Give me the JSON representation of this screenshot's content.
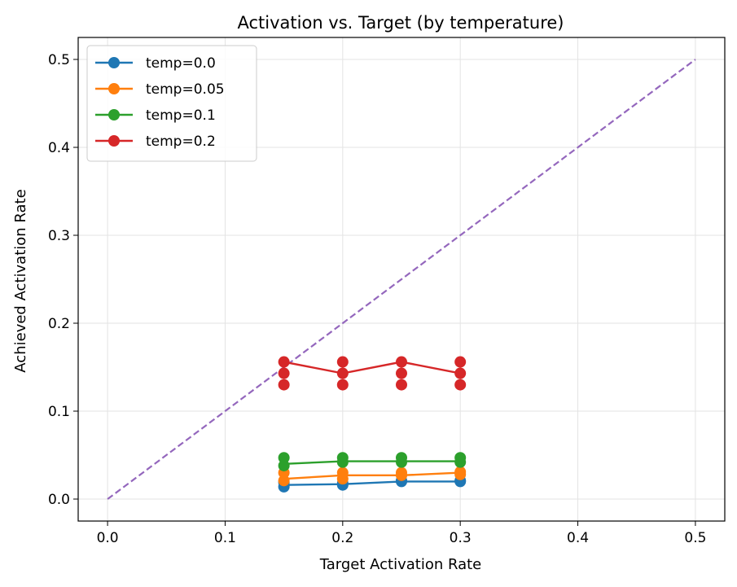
{
  "chart_data": {
    "type": "line",
    "title": "Activation vs. Target (by temperature)",
    "xlabel": "Target Activation Rate",
    "ylabel": "Achieved Activation Rate",
    "xlim": [
      -0.025,
      0.525
    ],
    "ylim": [
      -0.025,
      0.525
    ],
    "xticks": [
      0.0,
      0.1,
      0.2,
      0.3,
      0.4,
      0.5
    ],
    "yticks": [
      0.0,
      0.1,
      0.2,
      0.3,
      0.4,
      0.5
    ],
    "xtick_labels": [
      "0.0",
      "0.1",
      "0.2",
      "0.3",
      "0.4",
      "0.5"
    ],
    "ytick_labels": [
      "0.0",
      "0.1",
      "0.2",
      "0.3",
      "0.4",
      "0.5"
    ],
    "grid": true,
    "legend_position": "top-left",
    "x": [
      0.15,
      0.2,
      0.25,
      0.3
    ],
    "series": [
      {
        "name": "temp=0.0",
        "color": "#1f77b4",
        "line": [
          0.016,
          0.017,
          0.02,
          0.02
        ],
        "points": [
          [
            0.15,
            0.014
          ],
          [
            0.15,
            0.019
          ],
          [
            0.2,
            0.016
          ],
          [
            0.2,
            0.018
          ],
          [
            0.25,
            0.02
          ],
          [
            0.25,
            0.021
          ],
          [
            0.3,
            0.02
          ],
          [
            0.3,
            0.021
          ]
        ]
      },
      {
        "name": "temp=0.05",
        "color": "#ff7f0e",
        "line": [
          0.023,
          0.027,
          0.027,
          0.03
        ],
        "points": [
          [
            0.15,
            0.021
          ],
          [
            0.15,
            0.03
          ],
          [
            0.2,
            0.023
          ],
          [
            0.2,
            0.03
          ],
          [
            0.25,
            0.027
          ],
          [
            0.25,
            0.03
          ],
          [
            0.3,
            0.028
          ],
          [
            0.3,
            0.031
          ]
        ]
      },
      {
        "name": "temp=0.1",
        "color": "#2ca02c",
        "line": [
          0.04,
          0.043,
          0.043,
          0.043
        ],
        "points": [
          [
            0.15,
            0.038
          ],
          [
            0.15,
            0.047
          ],
          [
            0.2,
            0.042
          ],
          [
            0.2,
            0.047
          ],
          [
            0.25,
            0.042
          ],
          [
            0.25,
            0.047
          ],
          [
            0.3,
            0.042
          ],
          [
            0.3,
            0.047
          ]
        ]
      },
      {
        "name": "temp=0.2",
        "color": "#d62728",
        "line": [
          0.156,
          0.143,
          0.156,
          0.143
        ],
        "points": [
          [
            0.15,
            0.13
          ],
          [
            0.15,
            0.143
          ],
          [
            0.15,
            0.156
          ],
          [
            0.2,
            0.13
          ],
          [
            0.2,
            0.143
          ],
          [
            0.2,
            0.156
          ],
          [
            0.25,
            0.13
          ],
          [
            0.25,
            0.143
          ],
          [
            0.25,
            0.156
          ],
          [
            0.3,
            0.13
          ],
          [
            0.3,
            0.143
          ],
          [
            0.3,
            0.156
          ]
        ]
      }
    ],
    "reference_line": {
      "color": "#9467bd",
      "style": "dashed",
      "x": [
        0.0,
        0.5
      ],
      "y": [
        0.0,
        0.5
      ]
    }
  }
}
